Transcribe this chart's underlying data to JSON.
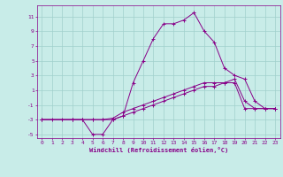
{
  "xlabel": "Windchill (Refroidissement éolien,°C)",
  "ylabel": "",
  "xlim": [
    -0.5,
    23.5
  ],
  "ylim": [
    -5.5,
    12.5
  ],
  "yticks": [
    -5,
    -3,
    -1,
    1,
    3,
    5,
    7,
    9,
    11
  ],
  "xticks": [
    0,
    1,
    2,
    3,
    4,
    5,
    6,
    7,
    8,
    9,
    10,
    11,
    12,
    13,
    14,
    15,
    16,
    17,
    18,
    19,
    20,
    21,
    22,
    23
  ],
  "background_color": "#c8ece8",
  "grid_color": "#a0d0cc",
  "line_color": "#880088",
  "line1_x": [
    0,
    1,
    2,
    3,
    4,
    5,
    6,
    7,
    8,
    9,
    10,
    11,
    12,
    13,
    14,
    15,
    16,
    17,
    18,
    19,
    20,
    21,
    22,
    23
  ],
  "line1_y": [
    -3,
    -3,
    -3,
    -3,
    -3,
    -5,
    -5,
    -3,
    -2.5,
    2,
    5,
    8,
    10,
    10,
    10.5,
    11.5,
    9,
    7.5,
    4,
    3,
    2.5,
    -0.5,
    -1.5,
    -1.5
  ],
  "line2_x": [
    0,
    3,
    4,
    5,
    6,
    7,
    8,
    9,
    10,
    11,
    12,
    13,
    14,
    15,
    16,
    17,
    18,
    19,
    20,
    21,
    22,
    23
  ],
  "line2_y": [
    -3,
    -3,
    -3,
    -3,
    -3,
    -2.8,
    -2,
    -1.5,
    -1,
    -0.5,
    0,
    0.5,
    1,
    1.5,
    2,
    2,
    2,
    2.5,
    -0.5,
    -1.5,
    -1.5,
    -1.5
  ],
  "line3_x": [
    0,
    3,
    4,
    5,
    6,
    7,
    8,
    9,
    10,
    11,
    12,
    13,
    14,
    15,
    16,
    17,
    18,
    19,
    20,
    21,
    22,
    23
  ],
  "line3_y": [
    -3,
    -3,
    -3,
    -3,
    -3,
    -3,
    -2.5,
    -2,
    -1.5,
    -1,
    -0.5,
    0,
    0.5,
    1,
    1.5,
    1.5,
    2,
    2,
    -1.5,
    -1.5,
    -1.5,
    -1.5
  ]
}
